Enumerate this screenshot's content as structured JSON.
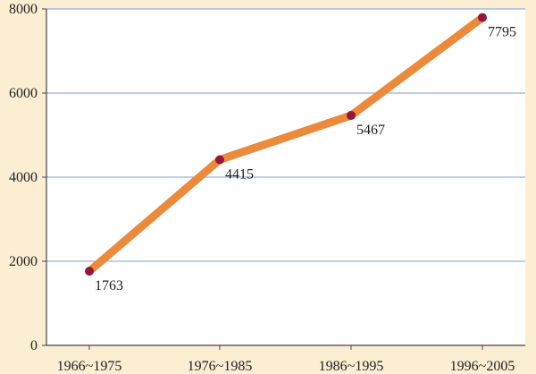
{
  "chart_data": {
    "type": "line",
    "title": "",
    "xlabel": "",
    "ylabel": "",
    "categories": [
      "1966~1975",
      "1976~1985",
      "1986~1995",
      "1996~2005"
    ],
    "series": [
      {
        "values": [
          1763,
          4415,
          5467,
          7795
        ]
      }
    ],
    "data_labels": [
      "1763",
      "4415",
      "5467",
      "7795"
    ],
    "ylim": [
      0,
      8000
    ],
    "yticks": [
      0,
      2000,
      4000,
      6000,
      8000
    ],
    "ytick_labels": [
      "0",
      "2000",
      "4000",
      "6000",
      "8000"
    ],
    "grid": true,
    "legend": "none",
    "colors": {
      "background": "#fbeed3",
      "plot_area": "#ffffff",
      "line": "#ec8a3c",
      "marker": "#96153a",
      "grid": "#7d9fd1",
      "axis": "#444444"
    }
  }
}
